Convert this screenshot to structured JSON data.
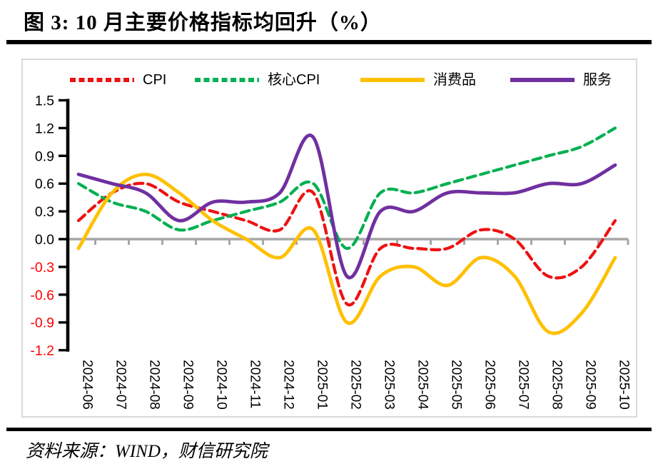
{
  "title": "图 3:  10 月主要价格指标均回升（%）",
  "source": "资料来源：WIND，财信研究院",
  "chart_data": {
    "type": "line",
    "title": "10月主要价格指标均回升（%）",
    "xlabel": "",
    "ylabel": "",
    "ylim": [
      -1.2,
      1.5
    ],
    "y_ticks": [
      1.5,
      1.2,
      0.9,
      0.6,
      0.3,
      0.0,
      -0.3,
      -0.6,
      -0.9,
      -1.2
    ],
    "grid": false,
    "legend_position": "top",
    "smooth": true,
    "axis_color": "#000000",
    "zero_line_color": "#a6a6a6",
    "negative_tick_color": "#ff0000",
    "categories": [
      "2024-06",
      "2024-07",
      "2024-08",
      "2024-09",
      "2024-10",
      "2024-11",
      "2024-12",
      "2025-01",
      "2025-02",
      "2025-03",
      "2025-04",
      "2025-05",
      "2025-06",
      "2025-07",
      "2025-08",
      "2025-09",
      "2025-10"
    ],
    "series": [
      {
        "name": "CPI",
        "color": "#ee1111",
        "dash": true,
        "values": [
          0.2,
          0.5,
          0.6,
          0.4,
          0.3,
          0.2,
          0.1,
          0.5,
          -0.7,
          -0.1,
          -0.1,
          -0.1,
          0.1,
          0.0,
          -0.4,
          -0.3,
          0.2
        ]
      },
      {
        "name": "核心CPI",
        "color": "#00b050",
        "dash": true,
        "values": [
          0.6,
          0.4,
          0.3,
          0.1,
          0.2,
          0.3,
          0.4,
          0.6,
          -0.1,
          0.5,
          0.5,
          0.6,
          0.7,
          0.8,
          0.9,
          1.0,
          1.2
        ]
      },
      {
        "name": "消费品",
        "color": "#ffc000",
        "dash": false,
        "values": [
          -0.1,
          0.5,
          0.7,
          0.5,
          0.2,
          0.0,
          -0.2,
          0.1,
          -0.9,
          -0.4,
          -0.3,
          -0.5,
          -0.2,
          -0.4,
          -1.0,
          -0.8,
          -0.2
        ]
      },
      {
        "name": "服务",
        "color": "#7030a0",
        "dash": false,
        "values": [
          0.7,
          0.6,
          0.5,
          0.2,
          0.4,
          0.4,
          0.5,
          1.1,
          -0.4,
          0.3,
          0.3,
          0.5,
          0.5,
          0.5,
          0.6,
          0.6,
          0.8
        ]
      }
    ]
  }
}
